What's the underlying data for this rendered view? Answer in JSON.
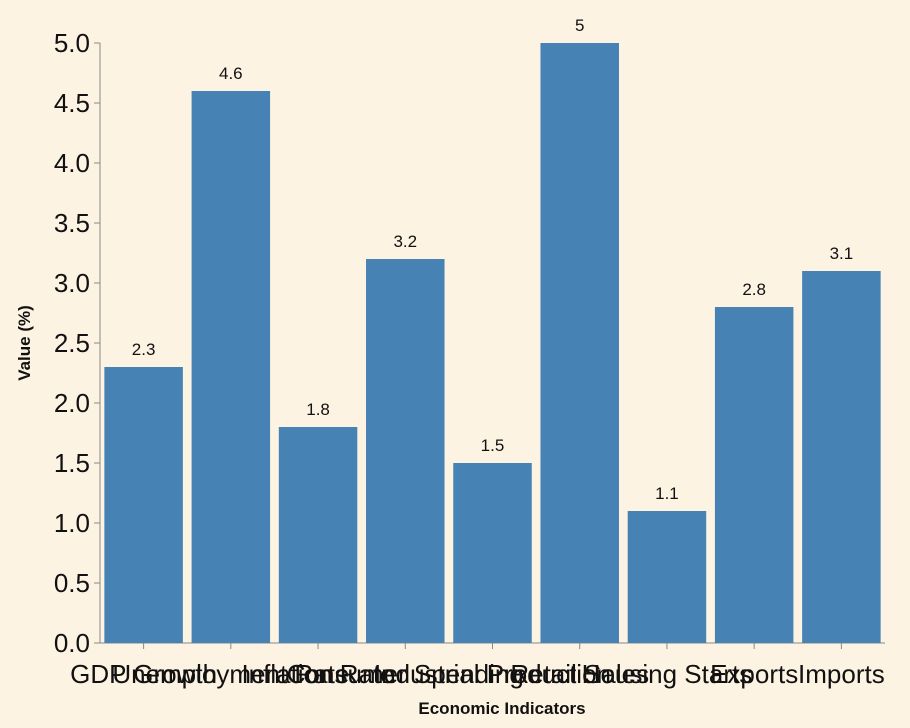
{
  "chart_data": {
    "type": "bar",
    "categories": [
      "GDP Growth",
      "Unemployment Rate",
      "Inflation Rate",
      "Consumer Spending",
      "Industrial Production",
      "Retail Sales",
      "Housing Starts",
      "Exports",
      "Imports"
    ],
    "values": [
      2.3,
      4.6,
      1.8,
      3.2,
      1.5,
      5.0,
      1.1,
      2.8,
      3.1
    ],
    "value_labels": [
      "2.3",
      "4.6",
      "1.8",
      "3.2",
      "1.5",
      "5",
      "1.1",
      "2.8",
      "3.1"
    ],
    "title": "",
    "xlabel": "Economic Indicators",
    "ylabel": "Value (%)",
    "ylim": [
      0,
      5
    ],
    "yticks": [
      "0.0",
      "0.5",
      "1.0",
      "1.5",
      "2.0",
      "2.5",
      "3.0",
      "3.5",
      "4.0",
      "4.5",
      "5.0"
    ],
    "grid": false,
    "legend": "none",
    "bar_color": "#4682b4",
    "background_color": "#fdf3e3"
  }
}
